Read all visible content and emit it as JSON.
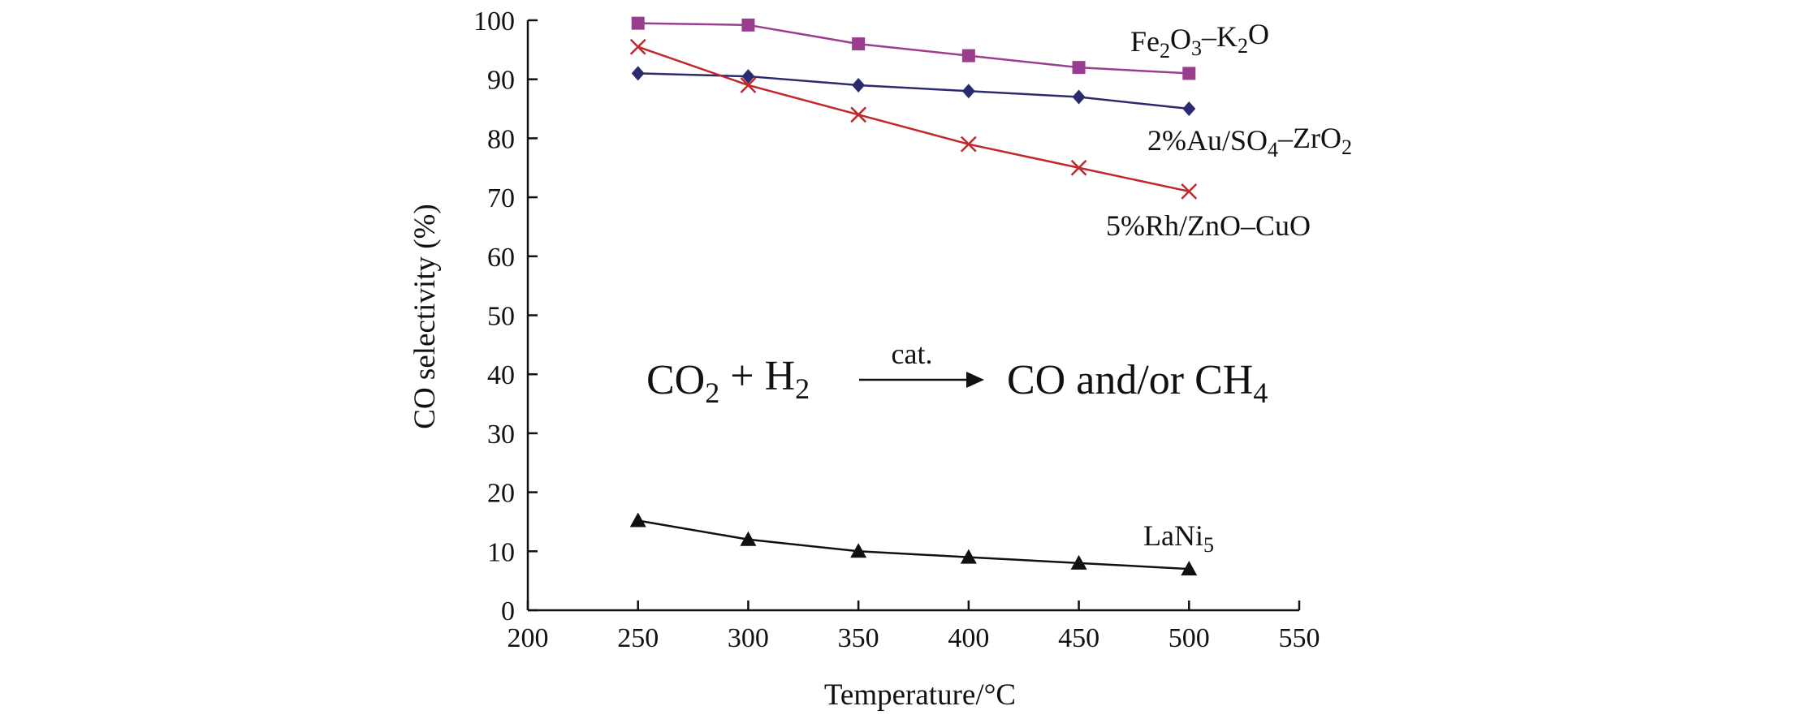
{
  "chart_data": {
    "type": "line",
    "xlabel": "Temperature/°C",
    "ylabel": "CO selectivity (%)",
    "xlim": [
      200,
      550
    ],
    "ylim": [
      0,
      100
    ],
    "x_ticks": [
      200,
      250,
      300,
      350,
      400,
      450,
      500,
      550
    ],
    "y_ticks": [
      0,
      10,
      20,
      30,
      40,
      50,
      60,
      70,
      80,
      90,
      100
    ],
    "x": [
      250,
      300,
      350,
      400,
      450,
      500
    ],
    "series": [
      {
        "name": "Fe2O3–K2O",
        "label_parts": [
          [
            "Fe",
            0
          ],
          [
            "2",
            1
          ],
          [
            "O",
            0
          ],
          [
            "3",
            1
          ],
          [
            "–K",
            0
          ],
          [
            "2",
            1
          ],
          [
            "O",
            0
          ]
        ],
        "marker": "square",
        "color": "#9b3d8f",
        "values": [
          99.5,
          99.2,
          96.0,
          94.0,
          92.0,
          91.0
        ]
      },
      {
        "name": "2%Au/SO4–ZrO2",
        "label_parts": [
          [
            "2%Au/SO",
            0
          ],
          [
            "4",
            1
          ],
          [
            "–ZrO",
            0
          ],
          [
            "2",
            1
          ]
        ],
        "marker": "diamond",
        "color": "#2a2a6e",
        "values": [
          91.0,
          90.5,
          89.0,
          88.0,
          87.0,
          85.0
        ]
      },
      {
        "name": "5%Rh/ZnO–CuO",
        "label_parts": [
          [
            "5%Rh/ZnO–CuO",
            0
          ]
        ],
        "marker": "x",
        "color": "#c0282d",
        "values": [
          95.5,
          89.0,
          84.0,
          79.0,
          75.0,
          71.0
        ]
      },
      {
        "name": "LaNi5",
        "label_parts": [
          [
            "LaNi",
            0
          ],
          [
            "5",
            1
          ]
        ],
        "marker": "triangle",
        "color": "#111111",
        "values": [
          15.2,
          12.0,
          10.0,
          9.0,
          8.0,
          7.0
        ]
      }
    ],
    "annotation": {
      "reactants_parts": [
        [
          "CO",
          0
        ],
        [
          "2",
          1
        ],
        [
          " + H",
          0
        ],
        [
          "2",
          1
        ]
      ],
      "arrow_label": "cat.",
      "products_parts": [
        [
          "CO and/or CH",
          0
        ],
        [
          "4",
          1
        ]
      ]
    }
  }
}
